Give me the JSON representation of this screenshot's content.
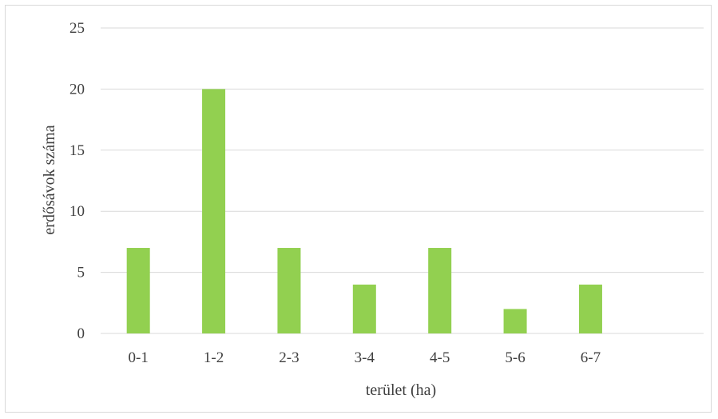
{
  "chart_data": {
    "type": "bar",
    "categories": [
      "0-1",
      "1-2",
      "2-3",
      "3-4",
      "4-5",
      "5-6",
      "6-7",
      ""
    ],
    "values": [
      7,
      20,
      7,
      4,
      7,
      2,
      4,
      null
    ],
    "title": "",
    "xlabel": "terület (ha)",
    "ylabel": "erdősávok száma",
    "ylim": [
      0,
      25
    ],
    "yticks": [
      0,
      5,
      10,
      15,
      20,
      25
    ],
    "grid": true,
    "legend": "none",
    "colors": {
      "bar": "#92d050",
      "grid": "#d9d9d9",
      "text": "#404040"
    }
  }
}
